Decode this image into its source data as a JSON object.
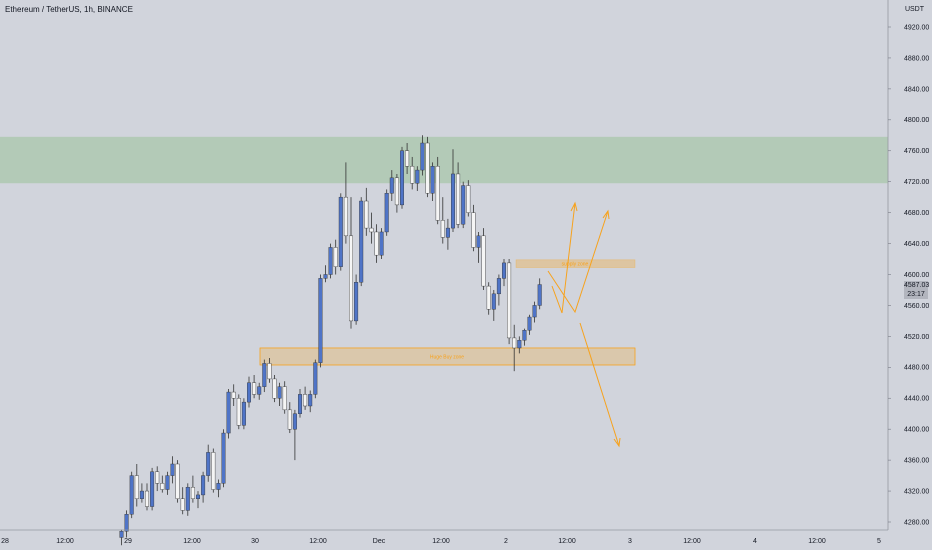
{
  "header": {
    "title": "Ethereum / TetherUS, 1h, BINANCE"
  },
  "price_axis": {
    "unit": "USDT"
  },
  "current_price": {
    "value": "4587.03",
    "countdown": "23:17"
  },
  "colors": {
    "background": "#d1d4dc",
    "bull_candle": "#4f74c7",
    "bear_candle": "#f5f5f5",
    "wick": "#333333",
    "supply_zone_green": "#a6c6a6",
    "orange": "#f7a21c"
  },
  "chart_data": {
    "type": "candlestick",
    "title": "Ethereum / TetherUS, 1h, BINANCE",
    "ylabel": "USDT",
    "ylim": [
      4260,
      4950
    ],
    "y_ticks": [
      4280,
      4320,
      4360,
      4400,
      4440,
      4480,
      4520,
      4560,
      4600,
      4640,
      4680,
      4720,
      4760,
      4800,
      4840,
      4880,
      4920
    ],
    "y_tick_labels": [
      "4280.00",
      "4320.00",
      "4360.00",
      "4400.00",
      "4440.00",
      "4480.00",
      "4520.00",
      "4560.00",
      "4600.00",
      "4640.00",
      "4680.00",
      "4720.00",
      "4760.00",
      "4800.00",
      "4840.00",
      "4880.00",
      "4920.00"
    ],
    "x_tick_labels": [
      "28",
      "12:00",
      "29",
      "12:00",
      "30",
      "12:00",
      "Dec",
      "12:00",
      "2",
      "12:00",
      "3",
      "12:00",
      "4",
      "12:00",
      "5"
    ],
    "grid": false,
    "legend": "none",
    "candles": [
      [
        4260,
        4270,
        4250,
        4268
      ],
      [
        4268,
        4295,
        4260,
        4290
      ],
      [
        4290,
        4345,
        4285,
        4340
      ],
      [
        4340,
        4355,
        4300,
        4310
      ],
      [
        4310,
        4330,
        4305,
        4320
      ],
      [
        4320,
        4330,
        4295,
        4300
      ],
      [
        4300,
        4350,
        4295,
        4345
      ],
      [
        4345,
        4352,
        4320,
        4330
      ],
      [
        4330,
        4340,
        4318,
        4322
      ],
      [
        4322,
        4345,
        4315,
        4340
      ],
      [
        4340,
        4365,
        4330,
        4355
      ],
      [
        4355,
        4360,
        4305,
        4310
      ],
      [
        4310,
        4325,
        4290,
        4295
      ],
      [
        4295,
        4330,
        4288,
        4325
      ],
      [
        4325,
        4340,
        4305,
        4310
      ],
      [
        4310,
        4320,
        4298,
        4315
      ],
      [
        4315,
        4345,
        4305,
        4340
      ],
      [
        4340,
        4380,
        4332,
        4370
      ],
      [
        4370,
        4375,
        4318,
        4322
      ],
      [
        4322,
        4335,
        4312,
        4330
      ],
      [
        4330,
        4400,
        4325,
        4395
      ],
      [
        4395,
        4452,
        4388,
        4448
      ],
      [
        4448,
        4458,
        4430,
        4440
      ],
      [
        4440,
        4445,
        4400,
        4405
      ],
      [
        4405,
        4440,
        4400,
        4435
      ],
      [
        4435,
        4468,
        4428,
        4460
      ],
      [
        4460,
        4470,
        4440,
        4445
      ],
      [
        4445,
        4460,
        4438,
        4455
      ],
      [
        4455,
        4490,
        4448,
        4485
      ],
      [
        4485,
        4492,
        4460,
        4465
      ],
      [
        4465,
        4470,
        4435,
        4440
      ],
      [
        4440,
        4460,
        4430,
        4455
      ],
      [
        4455,
        4462,
        4420,
        4425
      ],
      [
        4425,
        4435,
        4395,
        4400
      ],
      [
        4400,
        4425,
        4360,
        4420
      ],
      [
        4420,
        4452,
        4415,
        4445
      ],
      [
        4445,
        4455,
        4425,
        4430
      ],
      [
        4430,
        4450,
        4422,
        4445
      ],
      [
        4445,
        4490,
        4440,
        4486
      ],
      [
        4486,
        4600,
        4480,
        4595
      ],
      [
        4595,
        4612,
        4590,
        4600
      ],
      [
        4600,
        4640,
        4595,
        4635
      ],
      [
        4635,
        4645,
        4600,
        4610
      ],
      [
        4610,
        4705,
        4605,
        4700
      ],
      [
        4700,
        4745,
        4640,
        4650
      ],
      [
        4650,
        4700,
        4530,
        4540
      ],
      [
        4540,
        4600,
        4535,
        4590
      ],
      [
        4590,
        4700,
        4585,
        4695
      ],
      [
        4695,
        4712,
        4650,
        4660
      ],
      [
        4660,
        4680,
        4640,
        4655
      ],
      [
        4655,
        4665,
        4615,
        4625
      ],
      [
        4625,
        4660,
        4620,
        4655
      ],
      [
        4655,
        4710,
        4650,
        4705
      ],
      [
        4705,
        4735,
        4695,
        4725
      ],
      [
        4725,
        4730,
        4680,
        4690
      ],
      [
        4690,
        4765,
        4685,
        4760
      ],
      [
        4760,
        4770,
        4730,
        4740
      ],
      [
        4740,
        4752,
        4710,
        4718
      ],
      [
        4718,
        4740,
        4708,
        4735
      ],
      [
        4735,
        4780,
        4728,
        4770
      ],
      [
        4770,
        4778,
        4700,
        4705
      ],
      [
        4705,
        4745,
        4695,
        4740
      ],
      [
        4740,
        4752,
        4665,
        4670
      ],
      [
        4670,
        4700,
        4640,
        4648
      ],
      [
        4648,
        4672,
        4632,
        4660
      ],
      [
        4660,
        4762,
        4655,
        4730
      ],
      [
        4730,
        4745,
        4660,
        4665
      ],
      [
        4665,
        4720,
        4660,
        4715
      ],
      [
        4715,
        4722,
        4675,
        4680
      ],
      [
        4680,
        4690,
        4630,
        4635
      ],
      [
        4635,
        4655,
        4615,
        4650
      ],
      [
        4650,
        4660,
        4580,
        4585
      ],
      [
        4585,
        4590,
        4548,
        4555
      ],
      [
        4555,
        4580,
        4540,
        4575
      ],
      [
        4575,
        4600,
        4560,
        4595
      ],
      [
        4595,
        4620,
        4585,
        4615
      ],
      [
        4615,
        4620,
        4510,
        4518
      ],
      [
        4518,
        4535,
        4475,
        4505
      ],
      [
        4505,
        4520,
        4498,
        4515
      ],
      [
        4515,
        4530,
        4508,
        4528
      ],
      [
        4528,
        4548,
        4522,
        4545
      ],
      [
        4545,
        4565,
        4538,
        4560
      ],
      [
        4560,
        4595,
        4555,
        4587
      ]
    ]
  },
  "annotations": {
    "supply_zone_top": {
      "price_top": 4778,
      "price_bottom": 4718
    },
    "small_zone": {
      "label": "supply zone",
      "price_top": 4619,
      "price_bottom": 4609
    },
    "lower_zone": {
      "label": "Huge Buy zone",
      "price_top": 4505,
      "price_bottom": 4483
    }
  }
}
